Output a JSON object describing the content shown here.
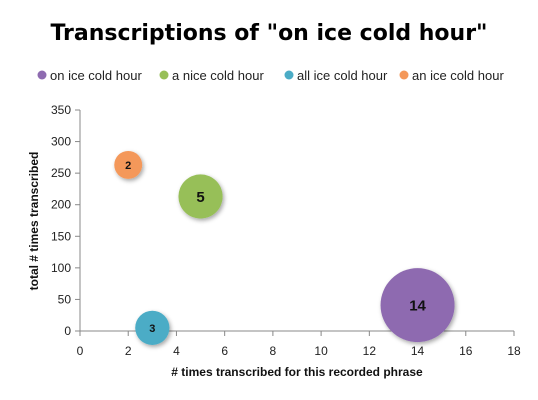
{
  "chart_data": {
    "type": "bubble",
    "title": "Transcriptions of \"on ice cold hour\"",
    "xlabel": "# times transcribed for this recorded phrase",
    "ylabel": "total # times transcribed",
    "xlim": [
      0,
      18
    ],
    "ylim": [
      0,
      350
    ],
    "x_ticks": [
      "0",
      "2",
      "4",
      "6",
      "8",
      "10",
      "12",
      "14",
      "16",
      "18"
    ],
    "y_ticks": [
      "0",
      "50",
      "100",
      "150",
      "200",
      "250",
      "300",
      "350"
    ],
    "grid": false,
    "legend_position": "top",
    "series": [
      {
        "name": "on ice cold hour",
        "color": "#8e6bb0",
        "x": 14,
        "y": 41,
        "size": 14,
        "label": "14"
      },
      {
        "name": "a nice cold hour",
        "color": "#97bf58",
        "x": 5,
        "y": 213,
        "size": 5,
        "label": "5"
      },
      {
        "name": "all ice cold hour",
        "color": "#4bacc6",
        "x": 3,
        "y": 5,
        "size": 3,
        "label": "3"
      },
      {
        "name": "an ice cold hour",
        "color": "#f4985a",
        "x": 2,
        "y": 263,
        "size": 2,
        "label": "2"
      }
    ]
  }
}
